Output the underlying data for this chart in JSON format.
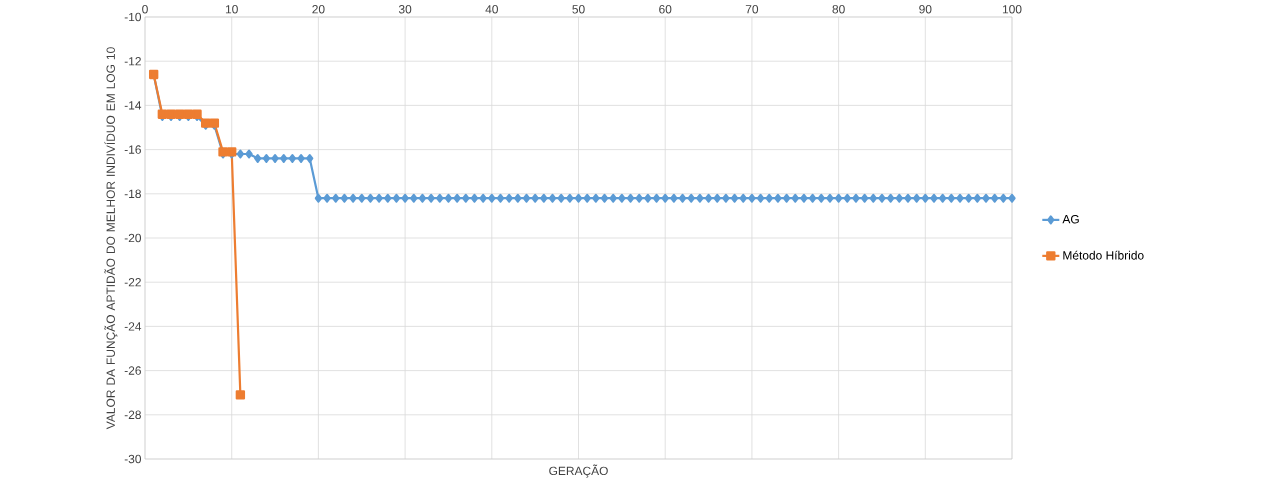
{
  "chart_data": {
    "type": "line",
    "xlabel": "GERAÇÃO",
    "ylabel": "VALOR DA FUNÇÃO APTIDÃO DO MELHOR INDIVÍDUO EM LOG 10",
    "xlim": [
      0,
      100
    ],
    "xticks": [
      0,
      10,
      20,
      30,
      40,
      50,
      60,
      70,
      80,
      90,
      100
    ],
    "ylim": [
      -30,
      -10
    ],
    "yticks": [
      -30,
      -28,
      -26,
      -24,
      -22,
      -20,
      -18,
      -16,
      -14,
      -12,
      -10
    ],
    "grid": true,
    "legend": "right",
    "series": [
      {
        "name": "AG",
        "color": "#5b9bd5",
        "marker": "diamond",
        "x": [
          1,
          2,
          3,
          4,
          5,
          6,
          7,
          8,
          9,
          10,
          11,
          12,
          13,
          14,
          15,
          16,
          17,
          18,
          19,
          20,
          21,
          22,
          23,
          24,
          25,
          26,
          27,
          28,
          29,
          30,
          31,
          32,
          33,
          34,
          35,
          36,
          37,
          38,
          39,
          40,
          41,
          42,
          43,
          44,
          45,
          46,
          47,
          48,
          49,
          50,
          51,
          52,
          53,
          54,
          55,
          56,
          57,
          58,
          59,
          60,
          61,
          62,
          63,
          64,
          65,
          66,
          67,
          68,
          69,
          70,
          71,
          72,
          73,
          74,
          75,
          76,
          77,
          78,
          79,
          80,
          81,
          82,
          83,
          84,
          85,
          86,
          87,
          88,
          89,
          90,
          91,
          92,
          93,
          94,
          95,
          96,
          97,
          98,
          99,
          100
        ],
        "values": [
          -12.6,
          -14.5,
          -14.5,
          -14.5,
          -14.5,
          -14.5,
          -14.9,
          -14.9,
          -16.2,
          -16.2,
          -16.2,
          -16.2,
          -16.4,
          -16.4,
          -16.4,
          -16.4,
          -16.4,
          -16.4,
          -16.4,
          -18.2,
          -18.2,
          -18.2,
          -18.2,
          -18.2,
          -18.2,
          -18.2,
          -18.2,
          -18.2,
          -18.2,
          -18.2,
          -18.2,
          -18.2,
          -18.2,
          -18.2,
          -18.2,
          -18.2,
          -18.2,
          -18.2,
          -18.2,
          -18.2,
          -18.2,
          -18.2,
          -18.2,
          -18.2,
          -18.2,
          -18.2,
          -18.2,
          -18.2,
          -18.2,
          -18.2,
          -18.2,
          -18.2,
          -18.2,
          -18.2,
          -18.2,
          -18.2,
          -18.2,
          -18.2,
          -18.2,
          -18.2,
          -18.2,
          -18.2,
          -18.2,
          -18.2,
          -18.2,
          -18.2,
          -18.2,
          -18.2,
          -18.2,
          -18.2,
          -18.2,
          -18.2,
          -18.2,
          -18.2,
          -18.2,
          -18.2,
          -18.2,
          -18.2,
          -18.2,
          -18.2,
          -18.2,
          -18.2,
          -18.2,
          -18.2,
          -18.2,
          -18.2,
          -18.2,
          -18.2,
          -18.2,
          -18.2,
          -18.2,
          -18.2,
          -18.2,
          -18.2,
          -18.2,
          -18.2,
          -18.2,
          -18.2,
          -18.2,
          -18.2
        ]
      },
      {
        "name": "Método Híbrido",
        "color": "#ed7d31",
        "marker": "square",
        "x": [
          1,
          2,
          3,
          4,
          5,
          6,
          7,
          8,
          9,
          10,
          11
        ],
        "values": [
          -12.6,
          -14.4,
          -14.4,
          -14.4,
          -14.4,
          -14.4,
          -14.8,
          -14.8,
          -16.1,
          -16.1,
          -27.1
        ]
      }
    ]
  }
}
